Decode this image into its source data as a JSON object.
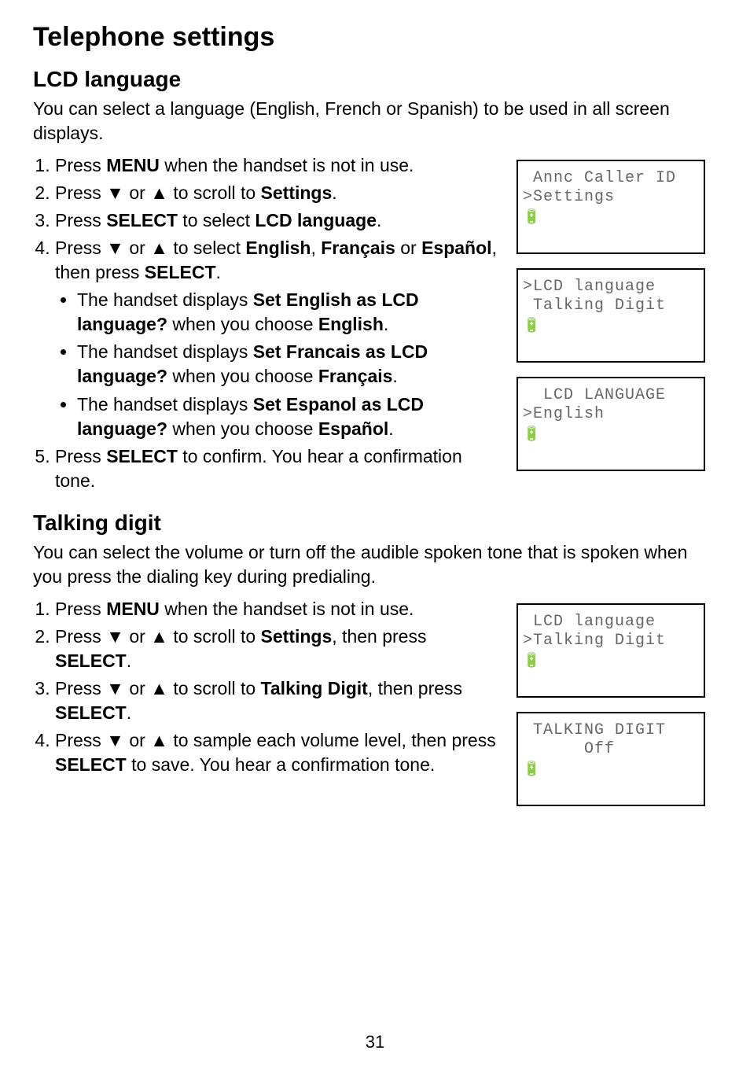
{
  "page_title": "Telephone settings",
  "page_number": "31",
  "sections": [
    {
      "heading": "LCD language",
      "intro": "You can select a language (English, French or Spanish) to be used in all screen displays.",
      "steps_html": [
        "Press <b>MENU</b> when the handset is not in use.",
        "Press ▼ or ▲ to scroll to <b>Settings</b>.",
        "Press <b>SELECT</b> to select <b>LCD language</b>.",
        "Press ▼ or ▲ to select <b>English</b>, <b>Français</b> or <b>Español</b>, then press <b>SELECT</b>.",
        "Press <b>SELECT</b> to confirm. You hear a confirmation tone."
      ],
      "bullets_after_step_index": 3,
      "bullets_html": [
        "The handset displays <b>Set English as LCD language?</b> when you choose <b>English</b>.",
        "The handset displays <b>Set Francais as LCD language?</b> when you choose <b>Français</b>.",
        "The handset displays <b>Set Espanol as LCD language?</b> when you choose <b>Español</b>."
      ],
      "lcds": [
        {
          "line1": " Annc Caller ID",
          "line2": ">Settings",
          "centered1": false
        },
        {
          "line1": ">LCD language",
          "line2": " Talking Digit",
          "centered1": false
        },
        {
          "line1": "  LCD LANGUAGE",
          "line2": ">English",
          "centered1": false
        }
      ]
    },
    {
      "heading": "Talking digit",
      "intro": "You can select the volume or turn off the audible spoken tone that is spoken when you press the dialing key during predialing.",
      "steps_html": [
        "Press <b>MENU</b> when the handset is not in use.",
        "Press ▼ or ▲ to scroll to <b>Settings</b>, then press <b>SELECT</b>.",
        "Press ▼ or ▲ to scroll to <b>Talking Digit</b>, then press <b>SELECT</b>.",
        "Press ▼ or ▲ to sample each volume level, then press <b>SELECT</b> to save. You hear a confirmation tone."
      ],
      "lcds": [
        {
          "line1": " LCD language",
          "line2": ">Talking Digit",
          "centered1": false
        },
        {
          "line1": " TALKING DIGIT",
          "line2": "      Off",
          "centered1": false
        }
      ]
    }
  ],
  "colors": {
    "text": "#000000",
    "lcd_border": "#000000",
    "lcd_text": "#666666",
    "background": "#ffffff"
  },
  "battery_glyph": "🔋"
}
